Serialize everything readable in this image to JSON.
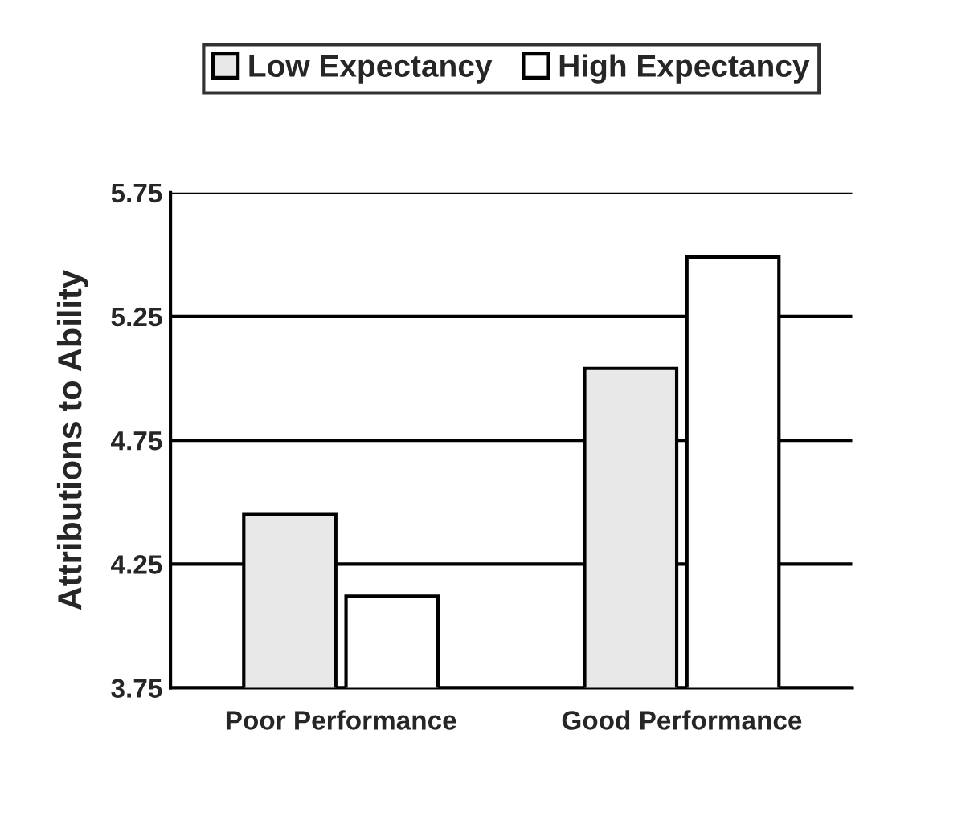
{
  "chart_data": {
    "type": "bar",
    "ylabel": "Attributions to Ability",
    "categories": [
      "Poor Performance",
      "Good Performance"
    ],
    "series": [
      {
        "name": "Low Expectancy",
        "color": "#e8e8e8",
        "values": [
          4.45,
          5.04
        ]
      },
      {
        "name": "High Expectancy",
        "color": "#ffffff",
        "values": [
          4.12,
          5.49
        ]
      }
    ],
    "ylim": [
      3.75,
      5.75
    ],
    "yticks": [
      3.75,
      4.25,
      4.75,
      5.25,
      5.75
    ],
    "grid": "y",
    "legend": "top"
  }
}
